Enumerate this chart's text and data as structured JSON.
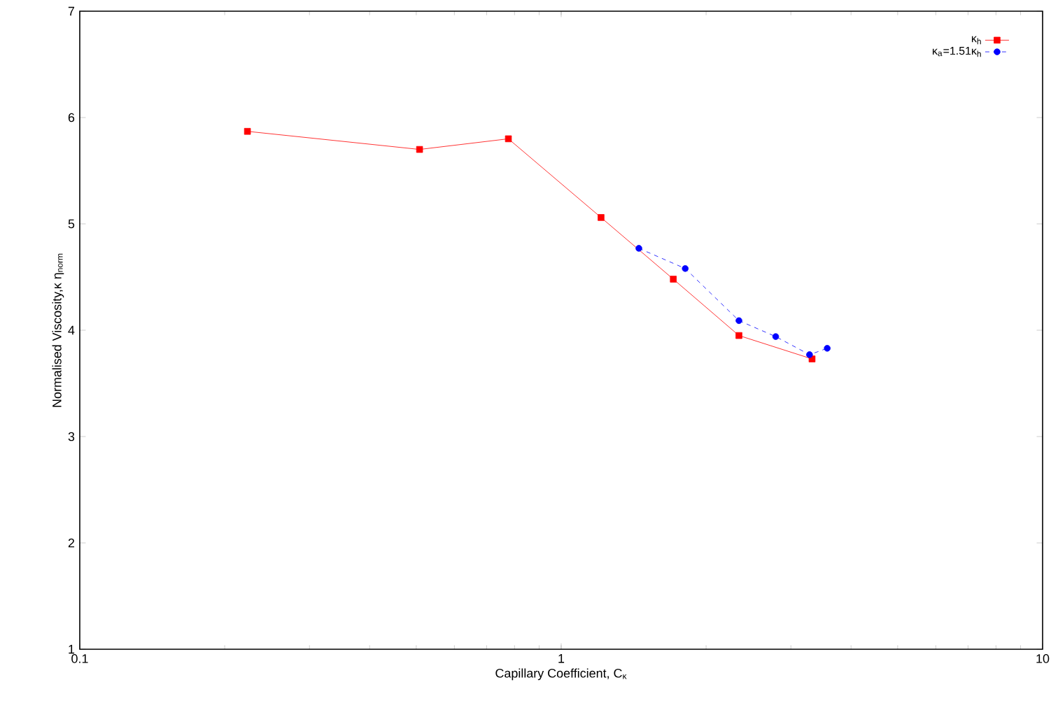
{
  "chart_data": {
    "type": "line",
    "xlabel": "Capillary Coefficient, C$_{κ}$",
    "ylabel": "Normalised Viscosity,κ η$_{norm}$",
    "log": "x",
    "xlim": [
      0.1,
      10
    ],
    "xticks": [
      0.1,
      1,
      10
    ],
    "ylim": [
      1,
      7
    ],
    "yticks": [
      1,
      2,
      3,
      4,
      5,
      6,
      7
    ],
    "legend": "top right",
    "series": [
      {
        "name": "κ$_{h}$",
        "color": "#ff0000",
        "marker": "square",
        "line_style": "solid",
        "x": [
          0.223,
          0.508,
          0.777,
          1.21,
          1.71,
          2.34,
          3.32
        ],
        "values": [
          5.87,
          5.7,
          5.8,
          5.06,
          4.48,
          3.95,
          3.73
        ]
      },
      {
        "name": "κ$_{a}$=1.51κ$_{h}$",
        "color": "#0000ff",
        "marker": "circle",
        "line_style": "dashed",
        "x": [
          1.45,
          1.81,
          2.34,
          2.79,
          3.28,
          3.57
        ],
        "values": [
          4.77,
          4.58,
          4.09,
          3.94,
          3.77,
          3.83
        ]
      }
    ]
  }
}
